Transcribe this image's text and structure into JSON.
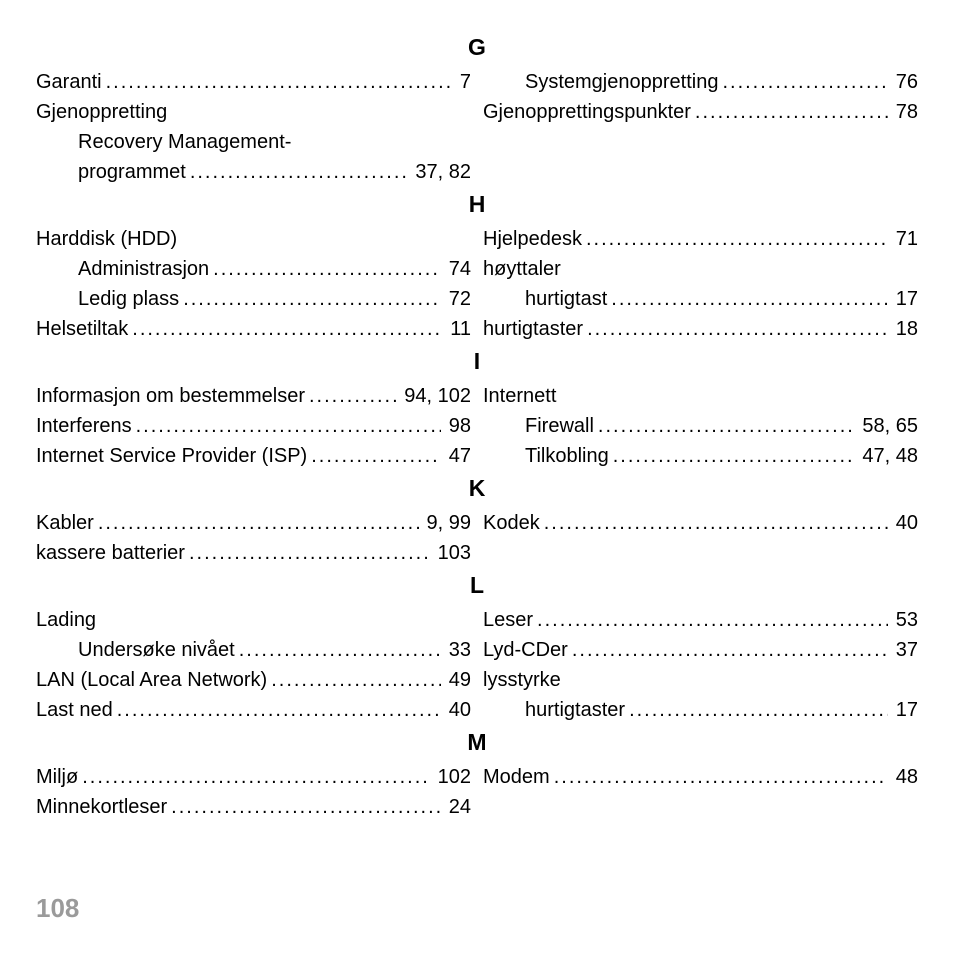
{
  "page_number": "108",
  "sections": {
    "G": {
      "heading": "G",
      "left": [
        {
          "term": "Garanti",
          "pages": "7",
          "indent": 0
        },
        {
          "term": "Gjenoppretting",
          "pages": "",
          "indent": 0
        },
        {
          "term": "Recovery Management-",
          "pages": "",
          "indent": 1,
          "nodots": true
        },
        {
          "term": "programmet",
          "pages": "37, 82",
          "indent": 1
        }
      ],
      "right": [
        {
          "term": "Systemgjenoppretting",
          "pages": "76",
          "indent": 1
        },
        {
          "term": "Gjenopprettingspunkter",
          "pages": "78",
          "indent": 0
        }
      ]
    },
    "H": {
      "heading": "H",
      "left": [
        {
          "term": "Harddisk (HDD)",
          "pages": "",
          "indent": 0
        },
        {
          "term": "Administrasjon",
          "pages": "74",
          "indent": 1
        },
        {
          "term": "Ledig plass",
          "pages": "72",
          "indent": 1
        },
        {
          "term": "Helsetiltak",
          "pages": "11",
          "indent": 0
        }
      ],
      "right": [
        {
          "term": "Hjelpedesk",
          "pages": "71",
          "indent": 0
        },
        {
          "term": "høyttaler",
          "pages": "",
          "indent": 0
        },
        {
          "term": "hurtigtast",
          "pages": "17",
          "indent": 1
        },
        {
          "term": "hurtigtaster",
          "pages": "18",
          "indent": 0
        }
      ]
    },
    "I": {
      "heading": "I",
      "left": [
        {
          "term": "Informasjon om bestemmelser",
          "pages": "94, 102",
          "indent": 0
        },
        {
          "term": "Interferens",
          "pages": "98",
          "indent": 0
        },
        {
          "term": "Internet Service Provider (ISP)",
          "pages": "47",
          "indent": 0
        }
      ],
      "right": [
        {
          "term": "Internett",
          "pages": "",
          "indent": 0
        },
        {
          "term": "Firewall",
          "pages": "58, 65",
          "indent": 1
        },
        {
          "term": "Tilkobling",
          "pages": "47, 48",
          "indent": 1
        }
      ]
    },
    "K": {
      "heading": "K",
      "left": [
        {
          "term": "Kabler",
          "pages": "9, 99",
          "indent": 0
        },
        {
          "term": "kassere batterier",
          "pages": "103",
          "indent": 0
        }
      ],
      "right": [
        {
          "term": "Kodek",
          "pages": "40",
          "indent": 0
        }
      ]
    },
    "L": {
      "heading": "L",
      "left": [
        {
          "term": "Lading",
          "pages": "",
          "indent": 0
        },
        {
          "term": "Undersøke nivået",
          "pages": "33",
          "indent": 1
        },
        {
          "term": "LAN (Local Area Network)",
          "pages": "49",
          "indent": 0
        },
        {
          "term": "Last ned",
          "pages": "40",
          "indent": 0
        }
      ],
      "right": [
        {
          "term": "Leser",
          "pages": "53",
          "indent": 0
        },
        {
          "term": "Lyd-CDer",
          "pages": "37",
          "indent": 0
        },
        {
          "term": "lysstyrke",
          "pages": "",
          "indent": 0
        },
        {
          "term": "hurtigtaster",
          "pages": "17",
          "indent": 1
        }
      ]
    },
    "M": {
      "heading": "M",
      "left": [
        {
          "term": "Miljø",
          "pages": "102",
          "indent": 0
        },
        {
          "term": "Minnekortleser",
          "pages": "24",
          "indent": 0
        }
      ],
      "right": [
        {
          "term": "Modem",
          "pages": "48",
          "indent": 0
        }
      ]
    }
  },
  "section_order": [
    "G",
    "H",
    "I",
    "K",
    "L",
    "M"
  ]
}
